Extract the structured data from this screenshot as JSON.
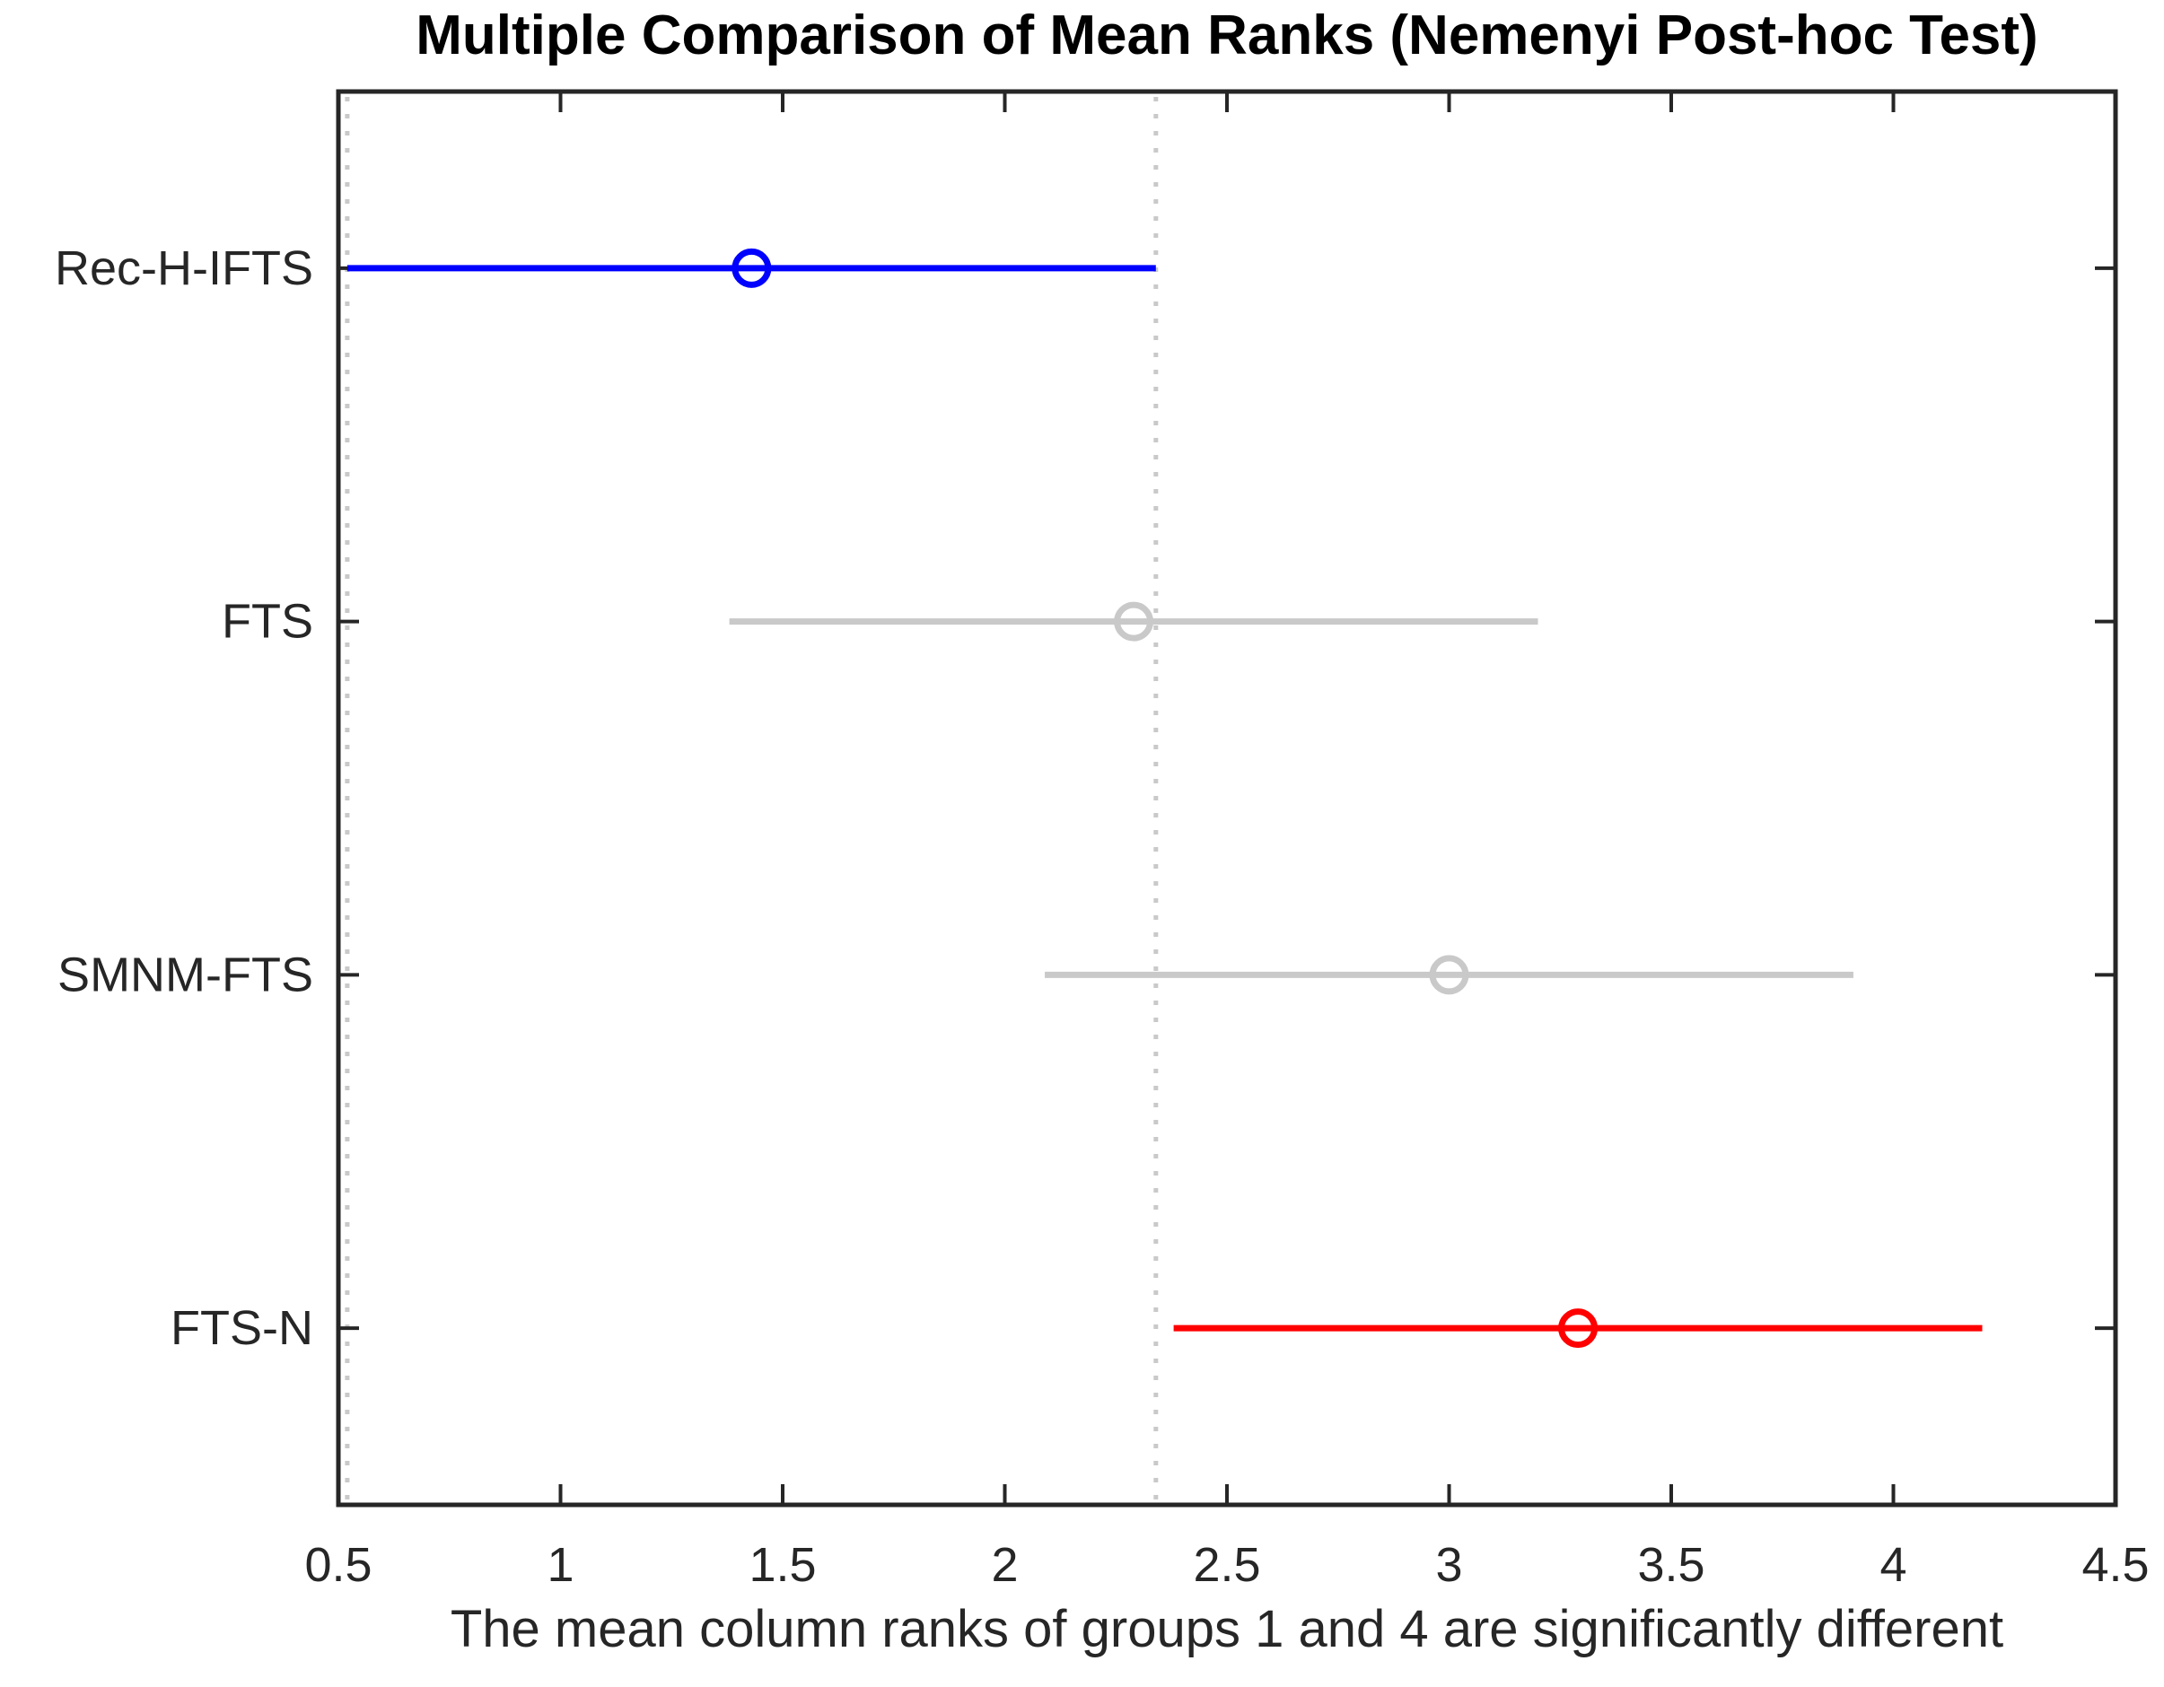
{
  "chart_data": {
    "type": "scatter",
    "subtype": "mean-rank-comparison-intervals",
    "title": "Multiple Comparison of Mean Ranks (Nemenyi Post-hoc Test)",
    "xlabel": "The mean column ranks of groups 1 and 4 are significantly different",
    "xlim": [
      0.5,
      4.5
    ],
    "xtick_values": [
      0.5,
      1,
      1.5,
      2,
      2.5,
      3,
      3.5,
      4,
      4.5
    ],
    "xtick_labels": [
      "0.5",
      "1",
      "1.5",
      "2",
      "2.5",
      "3",
      "3.5",
      "4",
      "4.5"
    ],
    "grid": false,
    "legend": null,
    "groups": [
      {
        "label": "Rec-H-IFTS",
        "mean_rank": 1.43,
        "ci_low": 0.52,
        "ci_high": 2.34,
        "color": "#0000FF",
        "role": "comparison-group"
      },
      {
        "label": "FTS",
        "mean_rank": 2.29,
        "ci_low": 1.38,
        "ci_high": 3.2,
        "color": "#C9C9C9",
        "role": "not-significant"
      },
      {
        "label": "SMNM-FTS",
        "mean_rank": 3.0,
        "ci_low": 2.09,
        "ci_high": 3.91,
        "color": "#C9C9C9",
        "role": "not-significant"
      },
      {
        "label": "FTS-N",
        "mean_rank": 3.29,
        "ci_low": 2.38,
        "ci_high": 4.2,
        "color": "#FF0000",
        "role": "significantly-different"
      }
    ],
    "reference_lines": {
      "values": [
        0.52,
        2.34
      ],
      "style": "dotted",
      "color": "#C9C9C9"
    },
    "colors": {
      "axis": "#262626",
      "selected": "#0000FF",
      "significant": "#FF0000",
      "insignificant": "#C9C9C9"
    }
  }
}
